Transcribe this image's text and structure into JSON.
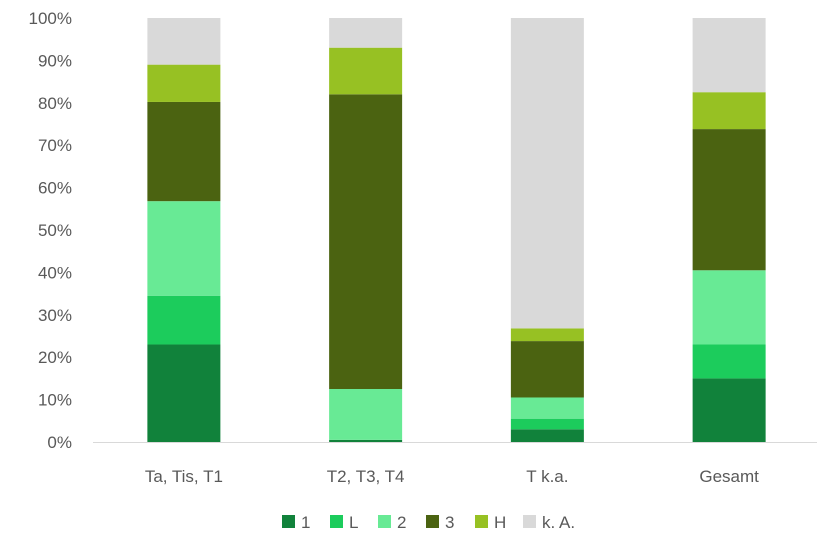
{
  "chart_data": {
    "type": "bar",
    "stacked": true,
    "percent": true,
    "categories": [
      "Ta, Tis, T1",
      "T2, T3, T4",
      "T k.a.",
      "Gesamt"
    ],
    "series": [
      {
        "name": "1",
        "color": "#11823b",
        "values": [
          23,
          0.5,
          3,
          15
        ]
      },
      {
        "name": "L",
        "color": "#1ccc5c",
        "values": [
          11.5,
          0,
          2.5,
          8
        ]
      },
      {
        "name": "2",
        "color": "#68ea95",
        "values": [
          22.3,
          12,
          5,
          17.5
        ]
      },
      {
        "name": "3",
        "color": "#4b6311",
        "values": [
          23.4,
          69.5,
          13.3,
          33.3
        ]
      },
      {
        "name": "H",
        "color": "#97c123",
        "values": [
          8.8,
          11,
          3,
          8.7
        ]
      },
      {
        "name": "k. A.",
        "color": "#d9d9d9",
        "values": [
          11,
          7,
          73.2,
          17.5
        ]
      }
    ],
    "y_ticks": [
      "0%",
      "10%",
      "20%",
      "30%",
      "40%",
      "50%",
      "60%",
      "70%",
      "80%",
      "90%",
      "100%"
    ],
    "ylim": [
      0,
      100
    ],
    "grid": false,
    "legend_position": "bottom"
  }
}
